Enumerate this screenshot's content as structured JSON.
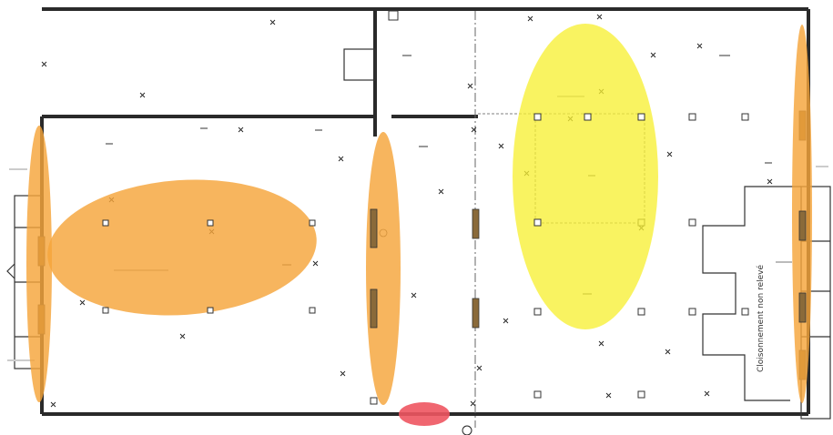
{
  "plan": {
    "side_label": "Cloisonnement non relevé"
  },
  "colors": {
    "orange_highlight": "#f5a53a",
    "yellow_highlight": "#f7f034",
    "red_highlight": "#ee5560",
    "wall": "#2a2a2a",
    "pier": "#8a6a3a"
  }
}
